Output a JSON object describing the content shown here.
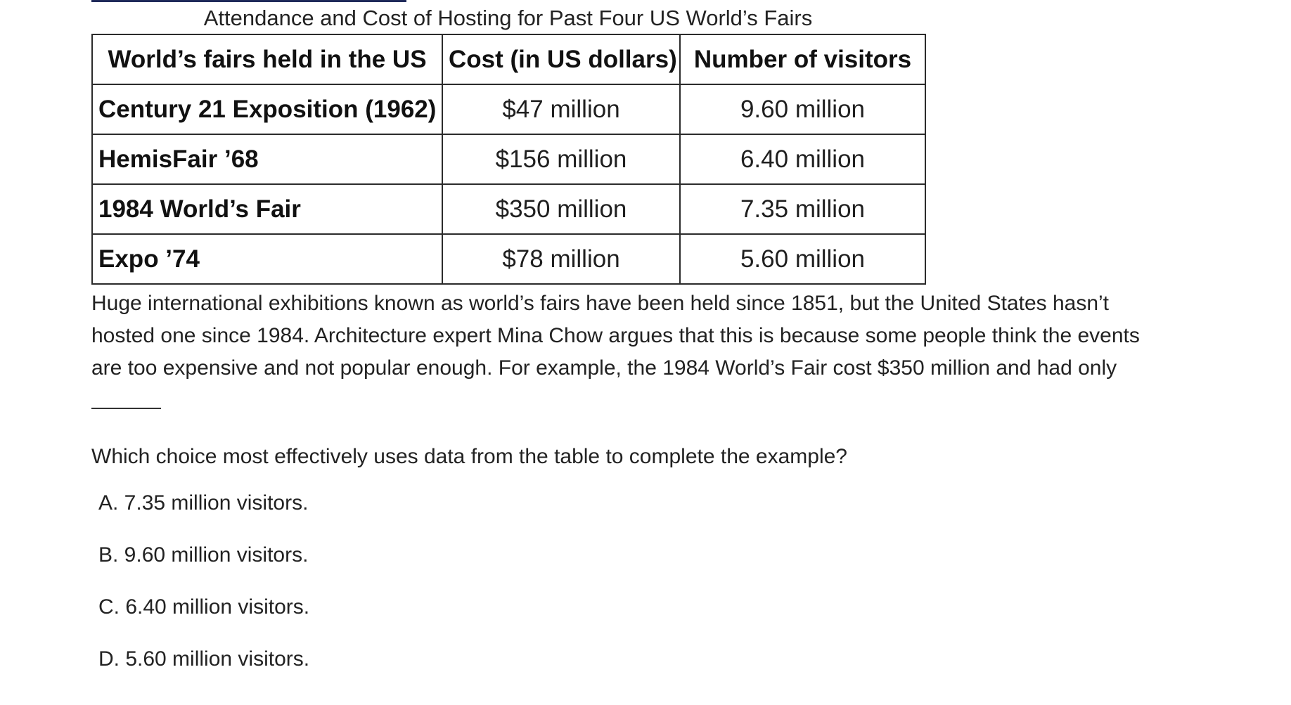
{
  "table": {
    "caption": "Attendance and Cost of Hosting for Past Four US World’s Fairs",
    "headers": [
      "World’s fairs held in the US",
      "Cost (in US dollars)",
      "Number of visitors"
    ],
    "rows": [
      {
        "fair": "Century 21 Exposition (1962)",
        "cost": "$47 million",
        "visitors": "9.60 million"
      },
      {
        "fair": "HemisFair ’68",
        "cost": "$156 million",
        "visitors": "6.40 million"
      },
      {
        "fair": "1984 World’s Fair",
        "cost": "$350 million",
        "visitors": "7.35 million"
      },
      {
        "fair": "Expo ’74",
        "cost": "$78 million",
        "visitors": "5.60 million"
      }
    ]
  },
  "passage": {
    "lines": [
      "Huge international exhibitions known as world’s fairs have been held since 1851, but the United States hasn’t",
      "hosted one since 1984. Architecture expert Mina Chow argues that this is because some people think the events",
      "are too expensive and not popular enough. For example, the 1984 World’s Fair cost $350 million and had only"
    ]
  },
  "question": {
    "prompt": "Which choice most effectively uses data from the table to complete the example?",
    "choices": [
      "A. 7.35 million visitors.",
      "B. 9.60 million visitors.",
      "C. 6.40 million visitors.",
      "D. 5.60 million visitors."
    ]
  }
}
